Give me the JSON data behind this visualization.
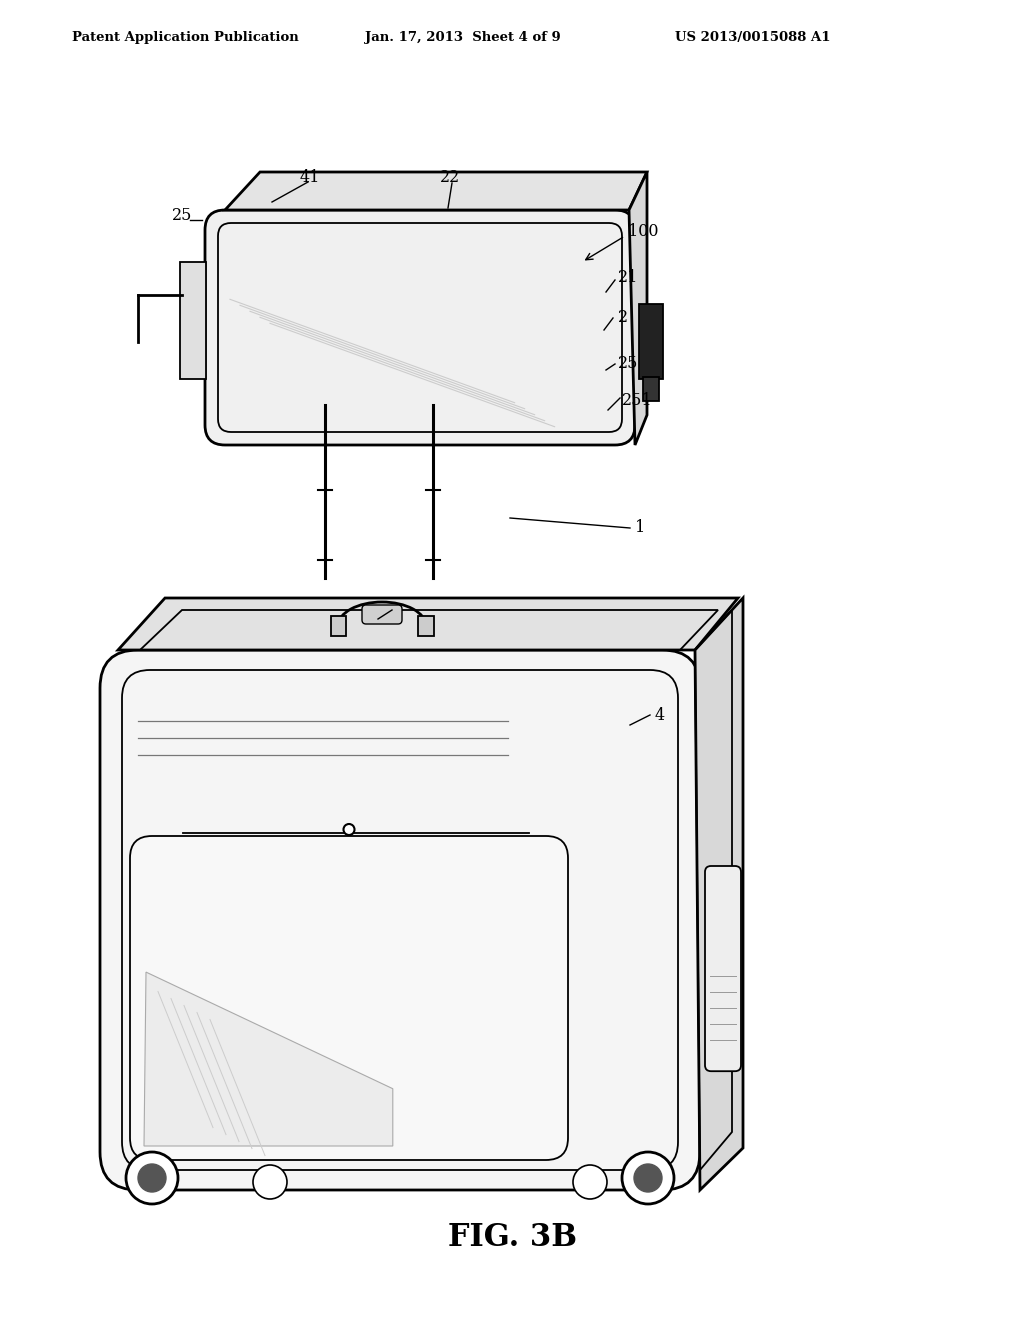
{
  "background_color": "#ffffff",
  "header_left": "Patent Application Publication",
  "header_center": "Jan. 17, 2013  Sheet 4 of 9",
  "header_right": "US 2013/0015088 A1",
  "figure_label": "FIG. 3B",
  "line_color": "#000000",
  "light_gray": "#e8e8e8",
  "mid_gray": "#aaaaaa",
  "dark_fill": "#222222"
}
